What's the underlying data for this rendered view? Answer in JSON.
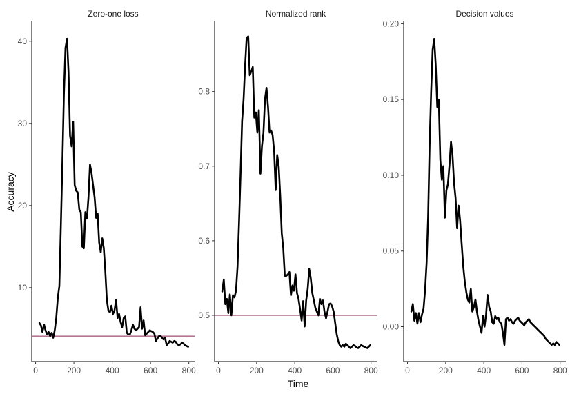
{
  "figure": {
    "ylabel": "Accuracy",
    "xlabel": "Time"
  },
  "chart_data": [
    {
      "type": "line",
      "title": "Zero-one loss",
      "xlim": [
        -20,
        830
      ],
      "ylim": [
        1,
        42.5
      ],
      "xticks": [
        0,
        200,
        400,
        600,
        800
      ],
      "yticks": [
        10,
        20,
        30,
        40
      ],
      "reference_line": 4.1,
      "series": [
        {
          "x": [
            20,
            28,
            36,
            44,
            52,
            60,
            68,
            76,
            84,
            92,
            100,
            108,
            116,
            124,
            132,
            140,
            148,
            156,
            164,
            172,
            180,
            188,
            196,
            204,
            212,
            220,
            228,
            236,
            244,
            252,
            260,
            268,
            276,
            284,
            292,
            300,
            308,
            316,
            324,
            332,
            340,
            348,
            356,
            364,
            372,
            380,
            388,
            396,
            404,
            412,
            420,
            428,
            436,
            444,
            452,
            460,
            468,
            476,
            484,
            492,
            500,
            508,
            516,
            524,
            532,
            540,
            548,
            556,
            564,
            572,
            580,
            588,
            596,
            604,
            612,
            620,
            628,
            636,
            644,
            652,
            660,
            668,
            676,
            684,
            692,
            700,
            708,
            716,
            724,
            732,
            740,
            748,
            756,
            764,
            772,
            780,
            788,
            796
          ],
          "y": [
            5.7,
            5.4,
            4.6,
            5.5,
            4.8,
            4.3,
            4.6,
            4.1,
            4.5,
            3.9,
            4.8,
            6.3,
            8.8,
            10.2,
            17.5,
            25.2,
            33.5,
            39.2,
            40.3,
            36.2,
            28.5,
            27.2,
            30.2,
            22.5,
            21.8,
            21.6,
            19.5,
            19.2,
            15.0,
            14.8,
            19.2,
            18.4,
            21.0,
            25.0,
            24.0,
            22.5,
            21.0,
            18.5,
            19.0,
            15.5,
            14.3,
            16.0,
            14.8,
            12.0,
            8.5,
            7.2,
            7.0,
            7.8,
            6.8,
            7.2,
            8.5,
            6.3,
            6.8,
            5.8,
            5.2,
            6.3,
            6.5,
            4.5,
            4.3,
            4.3,
            4.8,
            5.5,
            5.0,
            4.8,
            5.0,
            5.2,
            7.6,
            5.0,
            6.0,
            4.2,
            4.4,
            4.6,
            4.8,
            4.7,
            4.6,
            4.4,
            3.5,
            3.8,
            4.1,
            4.1,
            3.9,
            3.7,
            3.9,
            3.0,
            3.2,
            3.5,
            3.4,
            3.3,
            3.5,
            3.4,
            3.1,
            3.0,
            3.1,
            3.3,
            3.2,
            3.0,
            2.9,
            2.8
          ]
        }
      ]
    },
    {
      "type": "line",
      "title": "Normalized rank",
      "xlim": [
        -20,
        830
      ],
      "ylim": [
        0.438,
        0.895
      ],
      "xticks": [
        0,
        200,
        400,
        600,
        800
      ],
      "yticks": [
        0.5,
        0.6,
        0.7,
        0.8
      ],
      "reference_line": 0.5,
      "series": [
        {
          "x": [
            20,
            28,
            36,
            44,
            52,
            60,
            68,
            76,
            84,
            92,
            100,
            108,
            116,
            124,
            132,
            140,
            148,
            156,
            164,
            172,
            180,
            188,
            196,
            204,
            212,
            220,
            228,
            236,
            244,
            252,
            260,
            268,
            276,
            284,
            292,
            300,
            308,
            316,
            324,
            332,
            340,
            348,
            356,
            364,
            372,
            380,
            388,
            396,
            404,
            412,
            420,
            428,
            436,
            444,
            452,
            460,
            468,
            476,
            484,
            492,
            500,
            508,
            516,
            524,
            532,
            540,
            548,
            556,
            564,
            572,
            580,
            588,
            596,
            604,
            612,
            620,
            628,
            636,
            644,
            652,
            660,
            668,
            676,
            684,
            692,
            700,
            708,
            716,
            724,
            732,
            740,
            748,
            756,
            764,
            772,
            780,
            788,
            796
          ],
          "y": [
            0.532,
            0.548,
            0.515,
            0.522,
            0.503,
            0.528,
            0.5,
            0.527,
            0.524,
            0.533,
            0.565,
            0.625,
            0.69,
            0.76,
            0.79,
            0.835,
            0.872,
            0.874,
            0.822,
            0.827,
            0.833,
            0.765,
            0.772,
            0.745,
            0.775,
            0.69,
            0.727,
            0.745,
            0.79,
            0.805,
            0.78,
            0.745,
            0.748,
            0.742,
            0.72,
            0.668,
            0.715,
            0.7,
            0.66,
            0.61,
            0.59,
            0.553,
            0.553,
            0.555,
            0.558,
            0.527,
            0.54,
            0.533,
            0.555,
            0.53,
            0.522,
            0.508,
            0.493,
            0.519,
            0.485,
            0.52,
            0.535,
            0.562,
            0.55,
            0.53,
            0.52,
            0.51,
            0.505,
            0.5,
            0.522,
            0.515,
            0.52,
            0.505,
            0.496,
            0.505,
            0.515,
            0.516,
            0.512,
            0.505,
            0.49,
            0.475,
            0.465,
            0.46,
            0.458,
            0.46,
            0.458,
            0.462,
            0.46,
            0.458,
            0.456,
            0.458,
            0.46,
            0.459,
            0.457,
            0.456,
            0.458,
            0.46,
            0.459,
            0.458,
            0.457,
            0.456,
            0.458,
            0.46
          ]
        }
      ]
    },
    {
      "type": "line",
      "title": "Decision values",
      "xlim": [
        -20,
        830
      ],
      "ylim": [
        -0.023,
        0.202
      ],
      "xticks": [
        0,
        200,
        400,
        600,
        800
      ],
      "yticks": [
        0.0,
        0.05,
        0.1,
        0.15,
        0.2
      ],
      "ytick_labels": [
        "0.00",
        "0.05",
        "0.10",
        "0.15",
        "0.20"
      ],
      "series": [
        {
          "x": [
            20,
            28,
            36,
            44,
            52,
            60,
            68,
            76,
            84,
            92,
            100,
            108,
            116,
            124,
            132,
            140,
            148,
            156,
            164,
            172,
            180,
            188,
            196,
            204,
            212,
            220,
            228,
            236,
            244,
            252,
            260,
            268,
            276,
            284,
            292,
            300,
            308,
            316,
            324,
            332,
            340,
            348,
            356,
            364,
            372,
            380,
            388,
            396,
            404,
            412,
            420,
            428,
            436,
            444,
            452,
            460,
            468,
            476,
            484,
            492,
            500,
            508,
            516,
            524,
            532,
            540,
            548,
            556,
            564,
            572,
            580,
            588,
            596,
            604,
            612,
            620,
            628,
            636,
            644,
            652,
            660,
            668,
            676,
            684,
            692,
            700,
            708,
            716,
            724,
            732,
            740,
            748,
            756,
            764,
            772,
            780,
            788,
            796
          ],
          "y": [
            0.01,
            0.015,
            0.004,
            0.009,
            0.002,
            0.009,
            0.003,
            0.008,
            0.012,
            0.024,
            0.042,
            0.072,
            0.12,
            0.155,
            0.183,
            0.19,
            0.173,
            0.145,
            0.15,
            0.11,
            0.097,
            0.106,
            0.072,
            0.09,
            0.094,
            0.107,
            0.122,
            0.113,
            0.095,
            0.085,
            0.065,
            0.08,
            0.07,
            0.055,
            0.04,
            0.03,
            0.023,
            0.018,
            0.016,
            0.025,
            0.01,
            0.013,
            0.018,
            0.01,
            0.004,
            0.0,
            -0.004,
            0.007,
            0.0,
            0.008,
            0.021,
            0.013,
            0.01,
            0.003,
            0.002,
            0.007,
            0.005,
            0.006,
            0.003,
            0.002,
            -0.004,
            -0.012,
            0.005,
            0.006,
            0.004,
            0.005,
            0.003,
            0.002,
            0.004,
            0.005,
            0.006,
            0.004,
            0.003,
            0.002,
            0.001,
            0.003,
            0.004,
            0.005,
            0.003,
            0.002,
            0.001,
            0.0,
            -0.001,
            -0.002,
            -0.003,
            -0.004,
            -0.005,
            -0.006,
            -0.008,
            -0.009,
            -0.01,
            -0.011,
            -0.012,
            -0.011,
            -0.012,
            -0.01,
            -0.011,
            -0.012
          ]
        }
      ]
    }
  ]
}
